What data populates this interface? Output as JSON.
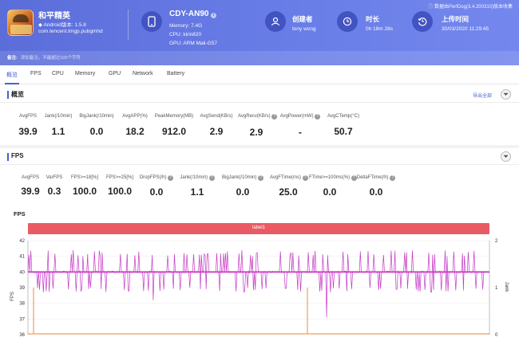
{
  "header": {
    "version_note": "ⓘ 数据由PerfDog(3.4.200310)版本收集",
    "app": {
      "name": "和平精英",
      "version": "◆ Android版本: 1.5.8",
      "package": "com.tencent.tmgp.pubgmhd"
    },
    "device": {
      "name": "CDY-AN90",
      "memory": "Memory: 7.4G",
      "cpu": "CPU: kirin820",
      "gpu": "GPU: ARM Mali-G57"
    },
    "creator": {
      "title": "创建者",
      "value": "tony wong"
    },
    "duration": {
      "title": "时长",
      "value": "0h 18m 28s"
    },
    "upload": {
      "title": "上传时间",
      "value": "30/03/2020 11:29:45"
    },
    "remark": {
      "label": "备注:",
      "placeholder": "添加备注，不能超过100个字符"
    }
  },
  "tabs": [
    "概览",
    "FPS",
    "CPU",
    "Memory",
    "GPU",
    "Network",
    "Battery"
  ],
  "overview": {
    "title": "概览",
    "export_label": "导出全部",
    "metrics": [
      {
        "label": "AvgFPS",
        "value": "39.9"
      },
      {
        "label": "Jank(/10min)",
        "value": "1.1"
      },
      {
        "label": "BigJank(/10min)",
        "value": "0.0"
      },
      {
        "label": "AvgAPP(%)",
        "value": "18.2"
      },
      {
        "label": "PeakMemory(MB)",
        "value": "912.0"
      },
      {
        "label": "AvgSend(KB/s)",
        "value": "2.9"
      },
      {
        "label": "AvgRecv(KB/s)",
        "value": "2.9"
      },
      {
        "label": "AvgPower(mW)",
        "value": "-"
      },
      {
        "label": "AvgCTemp(°C)",
        "value": "50.7"
      }
    ]
  },
  "fps": {
    "title": "FPS",
    "metrics": [
      {
        "label": "AvgFPS",
        "value": "39.9"
      },
      {
        "label": "VarFPS",
        "value": "0.3"
      },
      {
        "label": "FPS>=18[%]",
        "value": "100.0"
      },
      {
        "label": "FPS>=25[%]",
        "value": "100.0"
      },
      {
        "label": "DropFPS(/h)",
        "value": "0.0"
      },
      {
        "label": "Jank(/10min)",
        "value": "1.1"
      },
      {
        "label": "BigJank(/10min)",
        "value": "0.0"
      },
      {
        "label": "AvgFTime(ms)",
        "value": "25.0"
      },
      {
        "label": "FTime>=100ms(%)",
        "value": "0.0"
      },
      {
        "label": "DeltaFTime(/h)",
        "value": "0.0"
      }
    ]
  },
  "chart_data": {
    "type": "line",
    "title": "FPS",
    "legend": "label1",
    "ylabel_left": "FPS",
    "ylabel_right": "Jank",
    "ylim": [
      36,
      42
    ],
    "yticks": [
      "42",
      "41",
      "40",
      "39",
      "38",
      "37",
      "36"
    ],
    "y2lim": [
      0,
      2
    ],
    "y2ticks": [
      "2",
      "1",
      "0"
    ],
    "colors": {
      "fps": "#c63ac6",
      "jank": "#f08a3a",
      "legend": "#ea5a64",
      "accent": "#4a5fd6"
    }
  }
}
